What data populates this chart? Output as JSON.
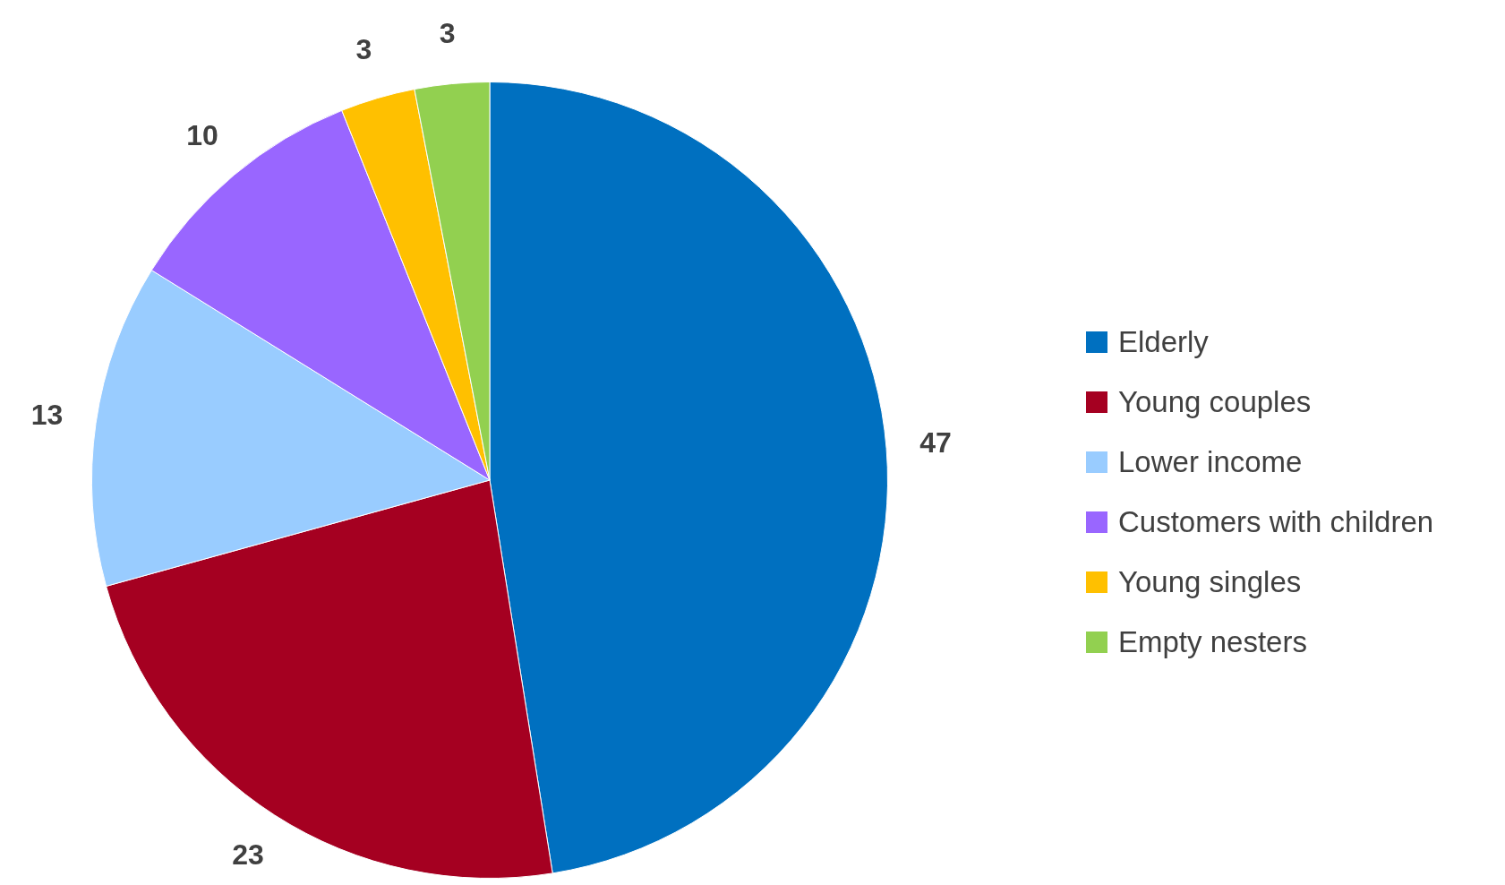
{
  "chart_data": {
    "type": "pie",
    "categories": [
      "Elderly",
      "Young couples",
      "Lower income",
      "Customers with children",
      "Young singles",
      "Empty nesters"
    ],
    "values": [
      47,
      23,
      13,
      10,
      3,
      3
    ],
    "colors": [
      "#0070c0",
      "#a50021",
      "#99ccff",
      "#9966ff",
      "#ffc000",
      "#92d050"
    ],
    "data_labels": true,
    "legend": "right"
  }
}
